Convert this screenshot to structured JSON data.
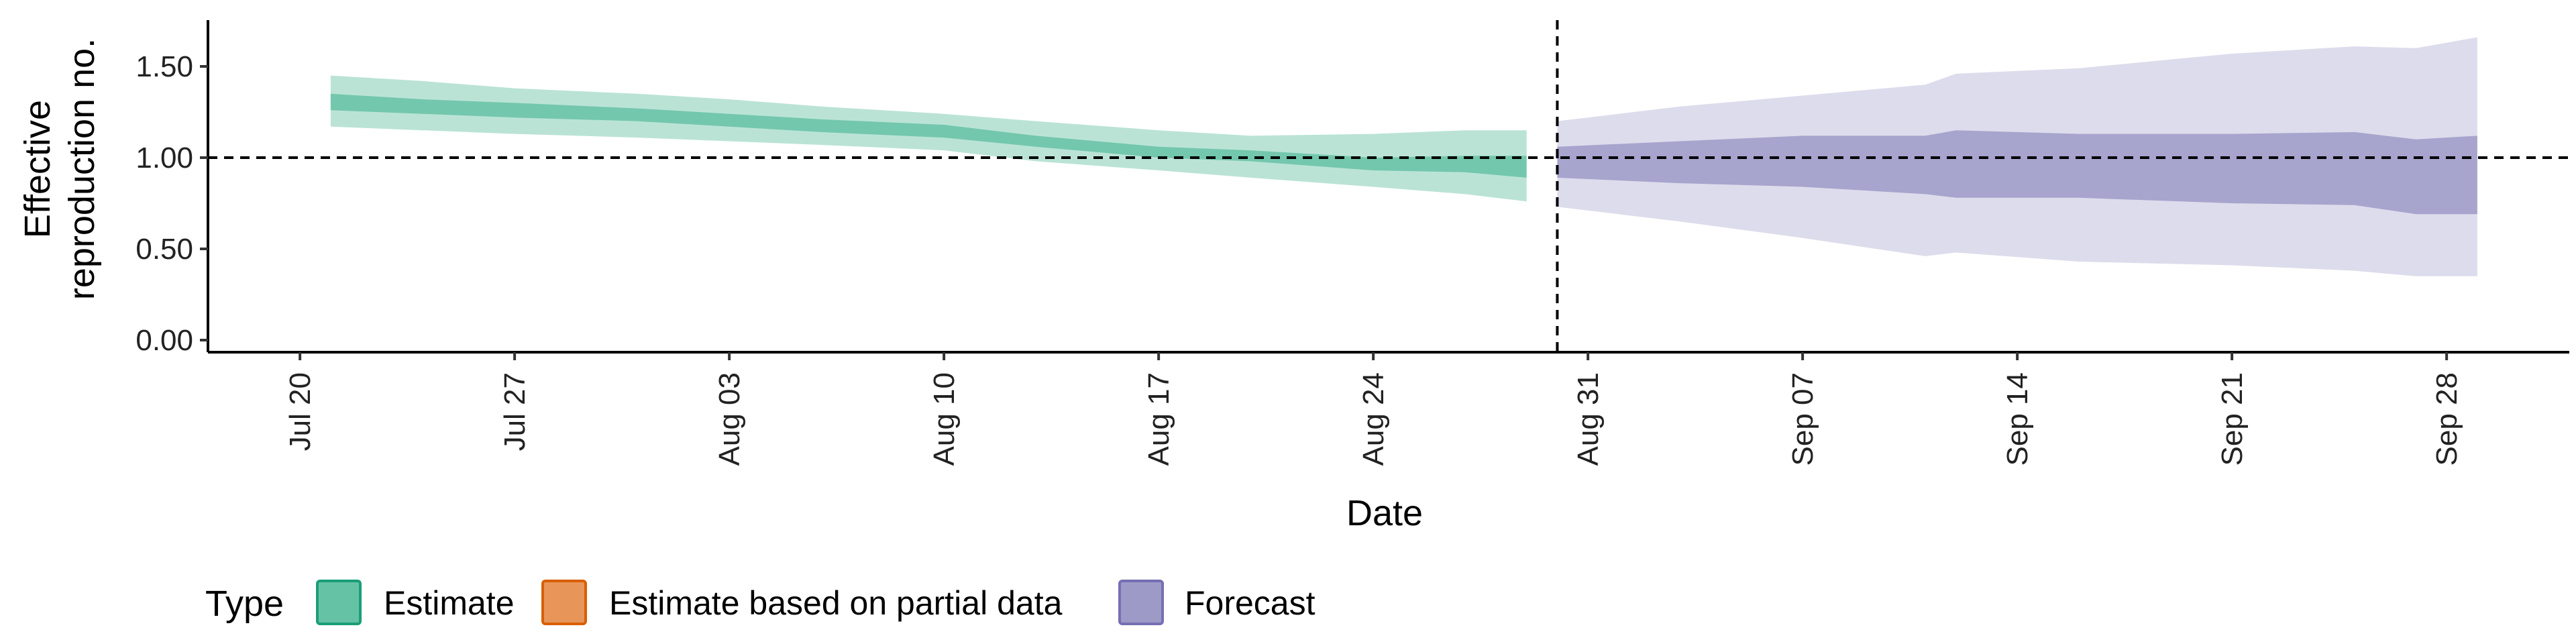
{
  "chart_data": {
    "type": "area",
    "title": "",
    "xlabel": "Date",
    "ylabel_lines": [
      "Effective",
      "reproduction no."
    ],
    "xlim": [
      "2022-07-17",
      "2022-10-02"
    ],
    "ylim": [
      0,
      1.75
    ],
    "y_ticks": [
      0.0,
      0.5,
      1.0,
      1.5
    ],
    "y_tick_labels": [
      "0.00",
      "0.50",
      "1.00",
      "1.50"
    ],
    "x_ticks": [
      "2022-07-20",
      "2022-07-27",
      "2022-08-03",
      "2022-08-10",
      "2022-08-17",
      "2022-08-24",
      "2022-08-31",
      "2022-09-07",
      "2022-09-14",
      "2022-09-21",
      "2022-09-28"
    ],
    "x_tick_labels": [
      "Jul 20",
      "Jul 27",
      "Aug 03",
      "Aug 10",
      "Aug 17",
      "Aug 24",
      "Aug 31",
      "Sep 07",
      "Sep 14",
      "Sep 21",
      "Sep 28"
    ],
    "hline": {
      "y": 1.0,
      "style": "dashed"
    },
    "vline": {
      "x": "2022-08-30",
      "style": "dashed"
    },
    "grid": false,
    "legend": {
      "position": "bottom-left",
      "title": "Type",
      "entries": [
        {
          "label": "Estimate",
          "color": "#66C2A5"
        },
        {
          "label": "Estimate based on partial data",
          "color": "#E8955A"
        },
        {
          "label": "Forecast",
          "color": "#9E9AC8"
        }
      ]
    },
    "series": [
      {
        "name": "Estimate",
        "inner_color": "#66C2A5",
        "outer_color": "#66C2A5",
        "points": [
          {
            "x": "2022-07-21",
            "lower90": 1.17,
            "upper90": 1.45,
            "lower50": 1.26,
            "upper50": 1.35
          },
          {
            "x": "2022-07-24",
            "lower90": 1.15,
            "upper90": 1.42,
            "lower50": 1.24,
            "upper50": 1.32
          },
          {
            "x": "2022-07-27",
            "lower90": 1.13,
            "upper90": 1.38,
            "lower50": 1.22,
            "upper50": 1.3
          },
          {
            "x": "2022-07-31",
            "lower90": 1.11,
            "upper90": 1.35,
            "lower50": 1.2,
            "upper50": 1.27
          },
          {
            "x": "2022-08-03",
            "lower90": 1.09,
            "upper90": 1.32,
            "lower50": 1.17,
            "upper50": 1.24
          },
          {
            "x": "2022-08-06",
            "lower90": 1.07,
            "upper90": 1.28,
            "lower50": 1.14,
            "upper50": 1.21
          },
          {
            "x": "2022-08-10",
            "lower90": 1.04,
            "upper90": 1.24,
            "lower50": 1.11,
            "upper50": 1.18
          },
          {
            "x": "2022-08-13",
            "lower90": 0.98,
            "upper90": 1.2,
            "lower50": 1.06,
            "upper50": 1.12
          },
          {
            "x": "2022-08-17",
            "lower90": 0.93,
            "upper90": 1.15,
            "lower50": 1.0,
            "upper50": 1.06
          },
          {
            "x": "2022-08-20",
            "lower90": 0.89,
            "upper90": 1.12,
            "lower50": 0.98,
            "upper50": 1.04
          },
          {
            "x": "2022-08-24",
            "lower90": 0.84,
            "upper90": 1.13,
            "lower50": 0.93,
            "upper50": 1.0
          },
          {
            "x": "2022-08-27",
            "lower90": 0.8,
            "upper90": 1.15,
            "lower50": 0.92,
            "upper50": 1.01
          },
          {
            "x": "2022-08-29",
            "lower90": 0.76,
            "upper90": 1.15,
            "lower50": 0.89,
            "upper50": 1.01
          }
        ]
      },
      {
        "name": "Forecast",
        "inner_color": "#9E9AC8",
        "outer_color": "#9E9AC8",
        "points": [
          {
            "x": "2022-08-30",
            "lower90": 0.73,
            "upper90": 1.2,
            "lower50": 0.89,
            "upper50": 1.06
          },
          {
            "x": "2022-09-03",
            "lower90": 0.65,
            "upper90": 1.28,
            "lower50": 0.86,
            "upper50": 1.09
          },
          {
            "x": "2022-09-07",
            "lower90": 0.56,
            "upper90": 1.34,
            "lower50": 0.84,
            "upper50": 1.12
          },
          {
            "x": "2022-09-11",
            "lower90": 0.46,
            "upper90": 1.4,
            "lower50": 0.8,
            "upper50": 1.12
          },
          {
            "x": "2022-09-12",
            "lower90": 0.48,
            "upper90": 1.46,
            "lower50": 0.78,
            "upper50": 1.15
          },
          {
            "x": "2022-09-16",
            "lower90": 0.43,
            "upper90": 1.49,
            "lower50": 0.78,
            "upper50": 1.13
          },
          {
            "x": "2022-09-21",
            "lower90": 0.41,
            "upper90": 1.57,
            "lower50": 0.75,
            "upper50": 1.13
          },
          {
            "x": "2022-09-25",
            "lower90": 0.38,
            "upper90": 1.61,
            "lower50": 0.74,
            "upper50": 1.14
          },
          {
            "x": "2022-09-27",
            "lower90": 0.35,
            "upper90": 1.6,
            "lower50": 0.69,
            "upper50": 1.1
          },
          {
            "x": "2022-09-29",
            "lower90": 0.35,
            "upper90": 1.66,
            "lower50": 0.69,
            "upper50": 1.12
          }
        ]
      }
    ]
  }
}
